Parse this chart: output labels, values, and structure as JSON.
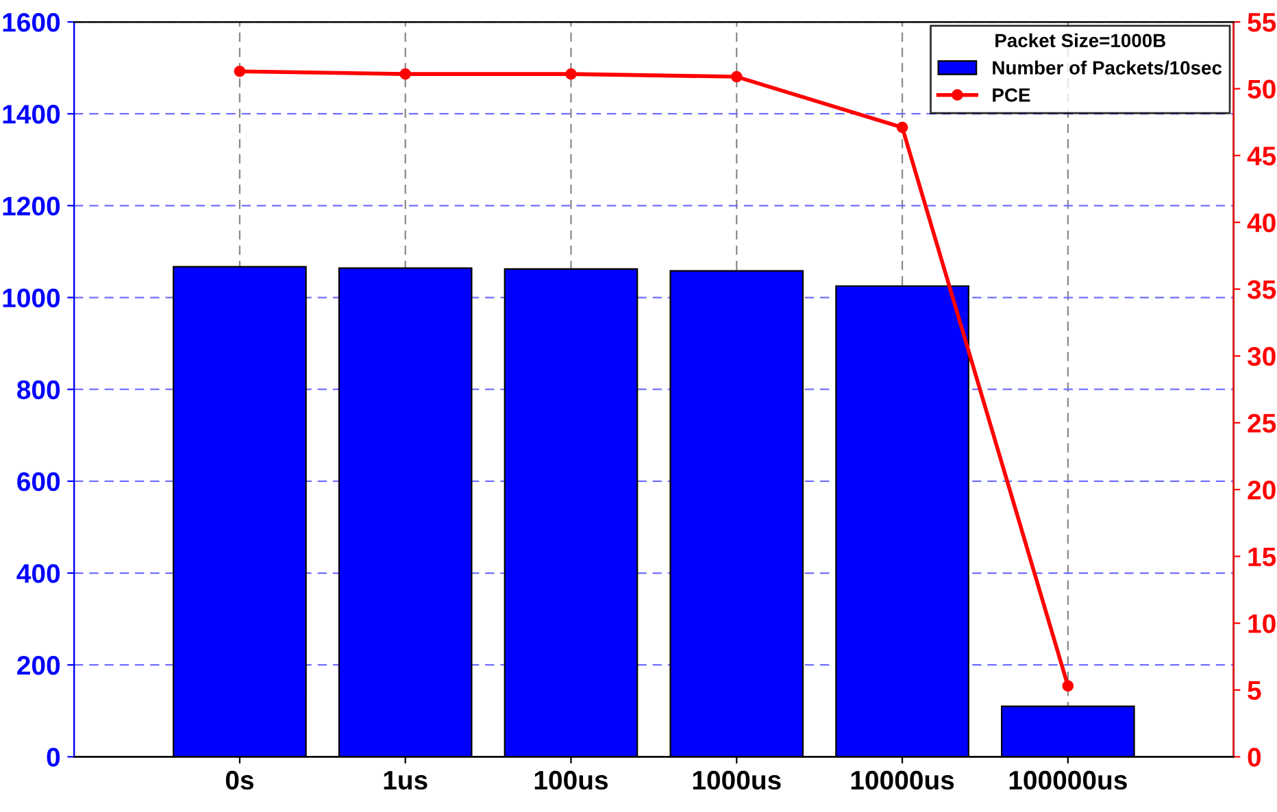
{
  "chart_data": {
    "type": "bar",
    "categories": [
      "0s",
      "1us",
      "100us",
      "1000us",
      "10000us",
      "100000us"
    ],
    "series": [
      {
        "name": "Number of Packets/10sec",
        "color": "#0000ff",
        "values": [
          1067,
          1064,
          1062,
          1058,
          1025,
          110
        ]
      },
      {
        "name": "PCE",
        "type": "line",
        "axis": "y2",
        "color": "#ff0000",
        "values": [
          51.3,
          51.1,
          51.1,
          50.9,
          47.1,
          5.3
        ]
      }
    ],
    "legend_title": "Packet Size=1000B",
    "legend": "top right",
    "marker": "circle",
    "grid": true,
    "ylim": [
      0,
      1600
    ],
    "yticks": [
      0,
      200,
      400,
      600,
      800,
      1000,
      1200,
      1400,
      1600
    ],
    "y2lim": [
      0,
      55
    ],
    "y2ticks": [
      0,
      5,
      10,
      15,
      20,
      25,
      30,
      35,
      40,
      45,
      50,
      55
    ]
  }
}
